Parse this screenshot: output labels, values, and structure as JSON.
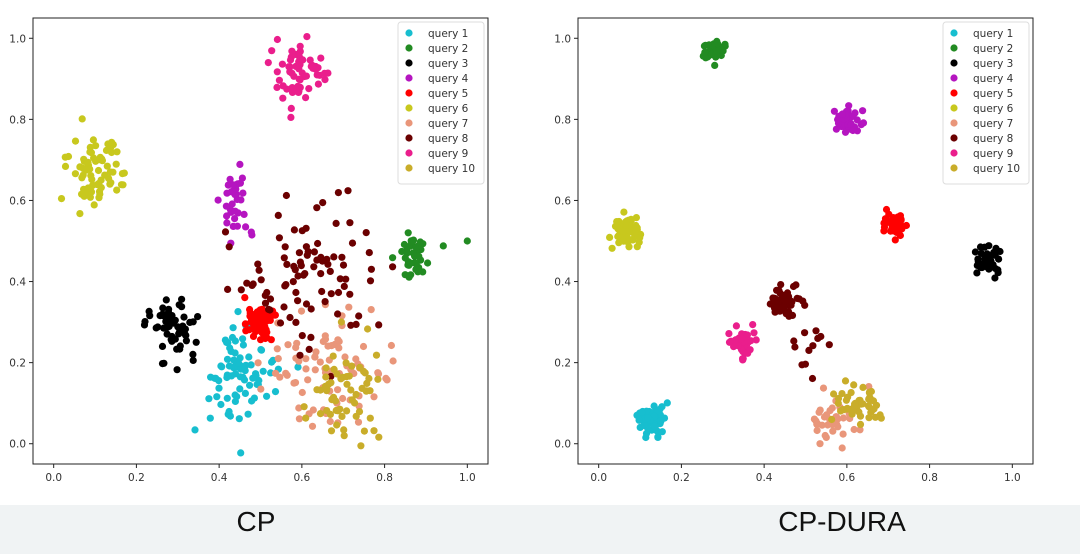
{
  "chart_data": [
    {
      "type": "scatter",
      "caption": "CP",
      "xlim": [
        -0.05,
        1.05
      ],
      "ylim": [
        -0.05,
        1.05
      ],
      "xticks": [
        "0.0",
        "0.2",
        "0.4",
        "0.6",
        "0.8",
        "1.0"
      ],
      "yticks": [
        "0.0",
        "0.2",
        "0.4",
        "0.6",
        "0.8",
        "1.0"
      ],
      "legend_position": "top-right",
      "series": [
        {
          "name": "query 1",
          "color": "#17becf",
          "clusters": [
            {
              "cx": 0.46,
              "cy": 0.17,
              "sx": 0.045,
              "sy": 0.065,
              "n": 80
            }
          ]
        },
        {
          "name": "query 2",
          "color": "#228b22",
          "clusters": [
            {
              "cx": 0.87,
              "cy": 0.46,
              "sx": 0.02,
              "sy": 0.03,
              "n": 40
            },
            {
              "cx": 1.0,
              "cy": 0.5,
              "sx": 0.0,
              "sy": 0.0,
              "n": 1
            }
          ]
        },
        {
          "name": "query 3",
          "color": "#000000",
          "clusters": [
            {
              "cx": 0.29,
              "cy": 0.29,
              "sx": 0.03,
              "sy": 0.05,
              "n": 55
            }
          ]
        },
        {
          "name": "query 4",
          "color": "#b515c0",
          "clusters": [
            {
              "cx": 0.44,
              "cy": 0.6,
              "sx": 0.018,
              "sy": 0.04,
              "n": 35
            }
          ]
        },
        {
          "name": "query 5",
          "color": "#ff0000",
          "clusters": [
            {
              "cx": 0.5,
              "cy": 0.3,
              "sx": 0.02,
              "sy": 0.025,
              "n": 70
            }
          ]
        },
        {
          "name": "query 6",
          "color": "#c8c81e",
          "clusters": [
            {
              "cx": 0.1,
              "cy": 0.67,
              "sx": 0.035,
              "sy": 0.05,
              "n": 70
            }
          ]
        },
        {
          "name": "query 7",
          "color": "#e9967a",
          "clusters": [
            {
              "cx": 0.66,
              "cy": 0.18,
              "sx": 0.065,
              "sy": 0.065,
              "n": 80
            }
          ]
        },
        {
          "name": "query 8",
          "color": "#6b0000",
          "clusters": [
            {
              "cx": 0.62,
              "cy": 0.42,
              "sx": 0.08,
              "sy": 0.09,
              "n": 90
            }
          ]
        },
        {
          "name": "query 9",
          "color": "#ea1e8c",
          "clusters": [
            {
              "cx": 0.59,
              "cy": 0.91,
              "sx": 0.03,
              "sy": 0.035,
              "n": 60
            }
          ]
        },
        {
          "name": "query 10",
          "color": "#c9ad2a",
          "clusters": [
            {
              "cx": 0.71,
              "cy": 0.14,
              "sx": 0.05,
              "sy": 0.06,
              "n": 60
            }
          ]
        }
      ]
    },
    {
      "type": "scatter",
      "caption": "CP-DURA",
      "xlim": [
        -0.05,
        1.05
      ],
      "ylim": [
        -0.05,
        1.05
      ],
      "xticks": [
        "0.0",
        "0.2",
        "0.4",
        "0.6",
        "0.8",
        "1.0"
      ],
      "yticks": [
        "0.0",
        "0.2",
        "0.4",
        "0.6",
        "0.8",
        "1.0"
      ],
      "legend_position": "top-right",
      "series": [
        {
          "name": "query 1",
          "color": "#17becf",
          "clusters": [
            {
              "cx": 0.13,
              "cy": 0.06,
              "sx": 0.018,
              "sy": 0.022,
              "n": 55
            }
          ]
        },
        {
          "name": "query 2",
          "color": "#228b22",
          "clusters": [
            {
              "cx": 0.28,
              "cy": 0.97,
              "sx": 0.014,
              "sy": 0.012,
              "n": 40
            }
          ]
        },
        {
          "name": "query 3",
          "color": "#000000",
          "clusters": [
            {
              "cx": 0.94,
              "cy": 0.45,
              "sx": 0.016,
              "sy": 0.02,
              "n": 45
            }
          ]
        },
        {
          "name": "query 4",
          "color": "#b515c0",
          "clusters": [
            {
              "cx": 0.6,
              "cy": 0.8,
              "sx": 0.014,
              "sy": 0.016,
              "n": 40
            }
          ]
        },
        {
          "name": "query 5",
          "color": "#ff0000",
          "clusters": [
            {
              "cx": 0.72,
              "cy": 0.54,
              "sx": 0.014,
              "sy": 0.015,
              "n": 40
            }
          ]
        },
        {
          "name": "query 6",
          "color": "#c8c81e",
          "clusters": [
            {
              "cx": 0.07,
              "cy": 0.52,
              "sx": 0.016,
              "sy": 0.022,
              "n": 55
            }
          ]
        },
        {
          "name": "query 7",
          "color": "#e9967a",
          "clusters": [
            {
              "cx": 0.56,
              "cy": 0.07,
              "sx": 0.025,
              "sy": 0.03,
              "n": 40
            }
          ]
        },
        {
          "name": "query 8",
          "color": "#6b0000",
          "clusters": [
            {
              "cx": 0.45,
              "cy": 0.35,
              "sx": 0.025,
              "sy": 0.02,
              "n": 45
            },
            {
              "cx": 0.52,
              "cy": 0.22,
              "sx": 0.025,
              "sy": 0.03,
              "n": 12
            }
          ]
        },
        {
          "name": "query 9",
          "color": "#ea1e8c",
          "clusters": [
            {
              "cx": 0.35,
              "cy": 0.25,
              "sx": 0.014,
              "sy": 0.018,
              "n": 40
            }
          ]
        },
        {
          "name": "query 10",
          "color": "#c9ad2a",
          "clusters": [
            {
              "cx": 0.62,
              "cy": 0.1,
              "sx": 0.03,
              "sy": 0.025,
              "n": 50
            }
          ]
        }
      ]
    }
  ]
}
